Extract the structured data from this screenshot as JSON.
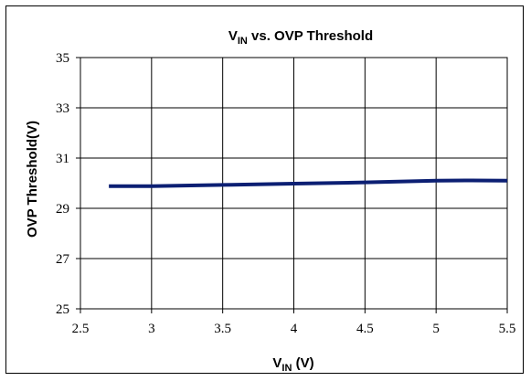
{
  "chart_data": {
    "type": "line",
    "title": {
      "main": "V",
      "sub": "IN",
      "rest": " vs. OVP Threshold"
    },
    "xlabel": {
      "main": "V",
      "sub": "IN",
      "rest": " (V)"
    },
    "ylabel": "OVP Threshold(V)",
    "xlim": [
      2.5,
      5.5
    ],
    "ylim": [
      25,
      35
    ],
    "x_ticks": [
      "2.5",
      "3",
      "3.5",
      "4",
      "4.5",
      "5",
      "5.5"
    ],
    "y_ticks": [
      "25",
      "27",
      "29",
      "31",
      "33",
      "35"
    ],
    "grid": true,
    "legend": "none",
    "series": [
      {
        "color": "#0c1f73",
        "x": [
          2.7,
          3.0,
          3.5,
          4.0,
          4.5,
          5.0,
          5.25,
          5.5
        ],
        "y": [
          29.88,
          29.88,
          29.93,
          29.98,
          30.03,
          30.1,
          30.11,
          30.1
        ]
      }
    ]
  }
}
